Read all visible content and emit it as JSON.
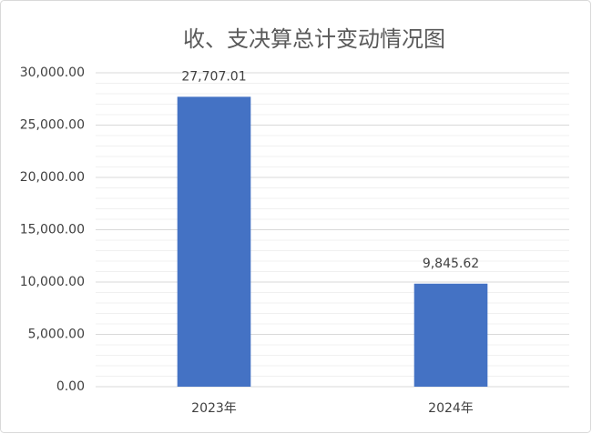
{
  "chart_data": {
    "type": "bar",
    "title": "收、支决算总计变动情况图",
    "categories": [
      "2023年",
      "2024年"
    ],
    "values": [
      27707.01,
      9845.62
    ],
    "value_labels": [
      "27,707.01",
      "9,845.62"
    ],
    "color": "#4472c4",
    "ylim": [
      0,
      30000
    ],
    "yticks": [
      {
        "value": 0,
        "label": "0.00"
      },
      {
        "value": 5000,
        "label": "5,000.00"
      },
      {
        "value": 10000,
        "label": "10,000.00"
      },
      {
        "value": 15000,
        "label": "15,000.00"
      },
      {
        "value": 20000,
        "label": "20,000.00"
      },
      {
        "value": 25000,
        "label": "25,000.00"
      },
      {
        "value": 30000,
        "label": "30,000.00"
      }
    ],
    "minor_yticks": [
      1000,
      2000,
      3000,
      4000,
      6000,
      7000,
      8000,
      9000,
      11000,
      12000,
      13000,
      14000,
      16000,
      17000,
      18000,
      19000,
      21000,
      22000,
      23000,
      24000,
      26000,
      27000,
      28000,
      29000
    ],
    "grid": true
  }
}
